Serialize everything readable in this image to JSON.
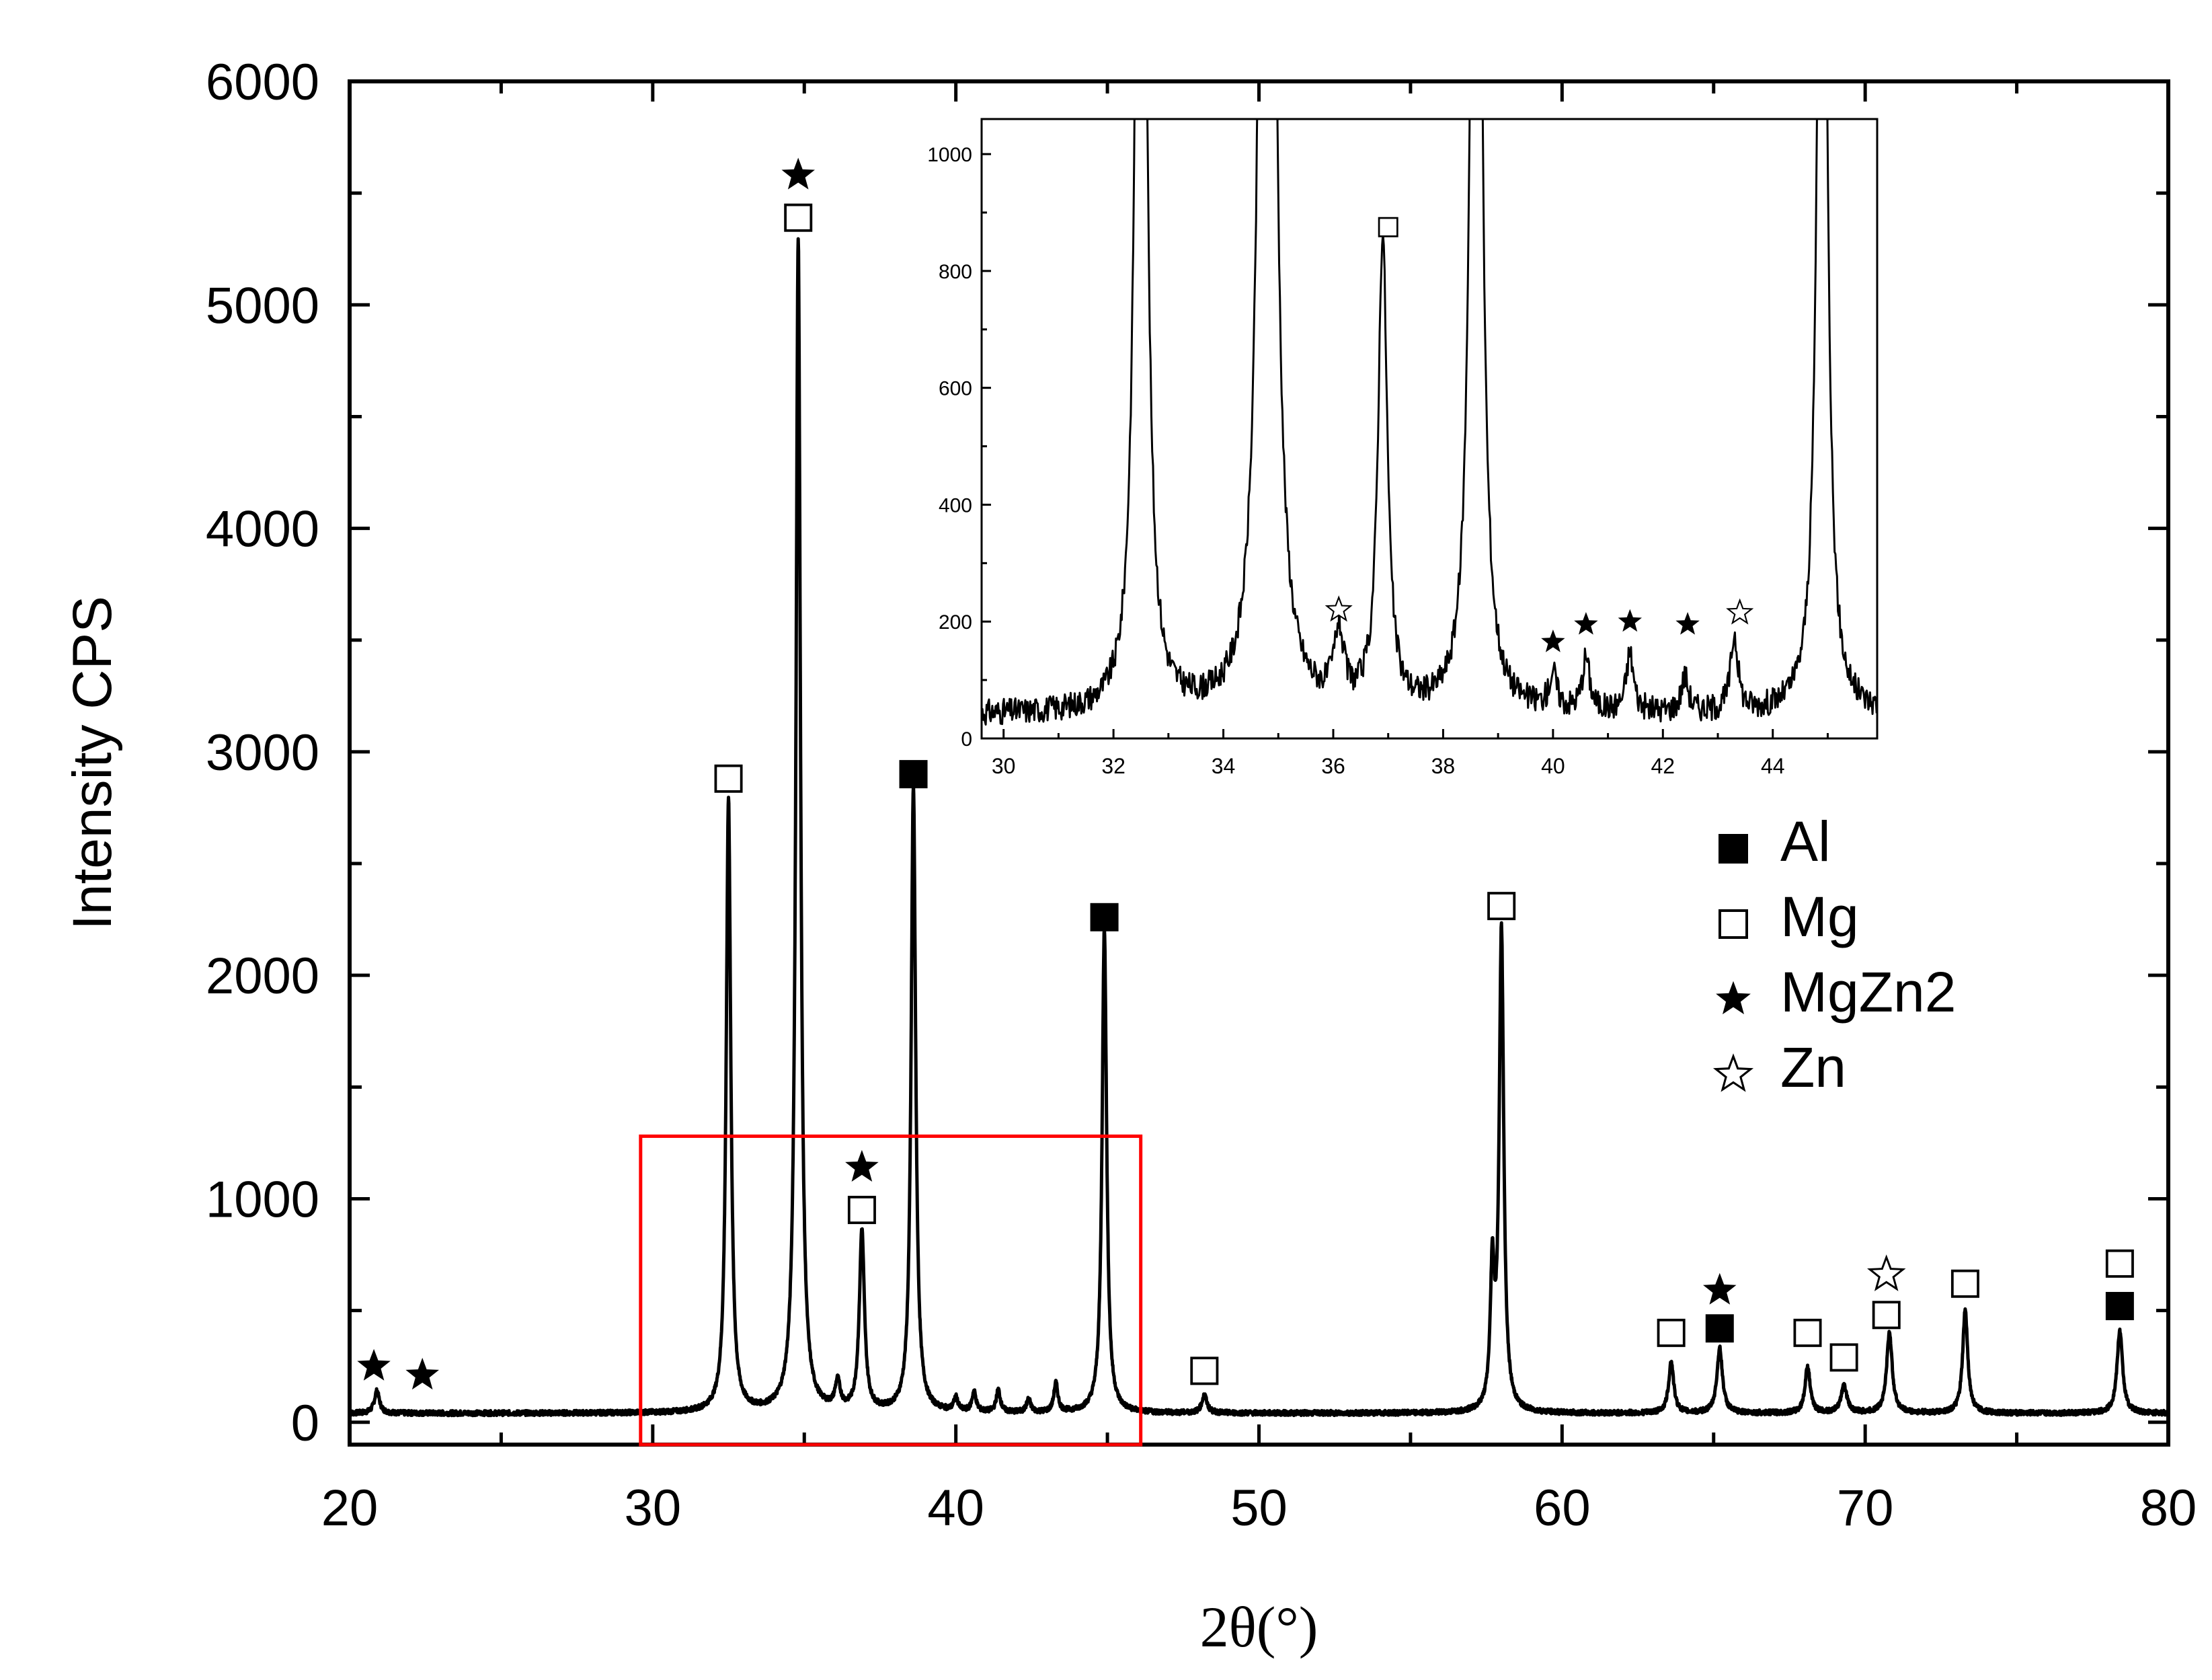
{
  "chart_data": {
    "type": "line",
    "title": "",
    "xlabel": "2θ(°)",
    "ylabel": "Intensity CPS",
    "xlim": [
      20,
      80
    ],
    "ylim": [
      -100,
      6000
    ],
    "xticks": [
      20,
      30,
      40,
      50,
      60,
      70,
      80
    ],
    "yticks": [
      0,
      1000,
      2000,
      3000,
      4000,
      5000,
      6000
    ],
    "baseline": 40,
    "peaks": [
      {
        "x": 20.9,
        "y": 100,
        "w": 0.1
      },
      {
        "x": 32.5,
        "y": 2750,
        "w": 0.09
      },
      {
        "x": 34.8,
        "y": 5250,
        "w": 0.09
      },
      {
        "x": 36.1,
        "y": 120,
        "w": 0.1
      },
      {
        "x": 36.9,
        "y": 810,
        "w": 0.1
      },
      {
        "x": 38.6,
        "y": 2800,
        "w": 0.09
      },
      {
        "x": 40.0,
        "y": 60,
        "w": 0.08
      },
      {
        "x": 40.6,
        "y": 90,
        "w": 0.08
      },
      {
        "x": 41.4,
        "y": 100,
        "w": 0.08
      },
      {
        "x": 42.4,
        "y": 60,
        "w": 0.08
      },
      {
        "x": 43.3,
        "y": 130,
        "w": 0.08
      },
      {
        "x": 44.9,
        "y": 2170,
        "w": 0.09
      },
      {
        "x": 48.2,
        "y": 80,
        "w": 0.1
      },
      {
        "x": 57.7,
        "y": 600,
        "w": 0.08
      },
      {
        "x": 58.0,
        "y": 2150,
        "w": 0.09
      },
      {
        "x": 63.6,
        "y": 230,
        "w": 0.1
      },
      {
        "x": 65.2,
        "y": 290,
        "w": 0.11
      },
      {
        "x": 68.1,
        "y": 210,
        "w": 0.1
      },
      {
        "x": 69.3,
        "y": 120,
        "w": 0.12
      },
      {
        "x": 70.8,
        "y": 360,
        "w": 0.11
      },
      {
        "x": 73.3,
        "y": 460,
        "w": 0.1
      },
      {
        "x": 78.4,
        "y": 370,
        "w": 0.11
      }
    ],
    "markers": [
      {
        "x": 20.8,
        "y": 250,
        "type": "MgZn2"
      },
      {
        "x": 22.4,
        "y": 210,
        "type": "MgZn2"
      },
      {
        "x": 32.5,
        "y": 2880,
        "type": "Mg"
      },
      {
        "x": 34.8,
        "y": 5390,
        "type": "Mg"
      },
      {
        "x": 34.8,
        "y": 5580,
        "type": "MgZn2"
      },
      {
        "x": 36.9,
        "y": 950,
        "type": "Mg"
      },
      {
        "x": 36.9,
        "y": 1140,
        "type": "MgZn2"
      },
      {
        "x": 38.6,
        "y": 2900,
        "type": "Al"
      },
      {
        "x": 44.9,
        "y": 2260,
        "type": "Al"
      },
      {
        "x": 48.2,
        "y": 230,
        "type": "Mg"
      },
      {
        "x": 58.0,
        "y": 2310,
        "type": "Mg"
      },
      {
        "x": 63.6,
        "y": 400,
        "type": "Mg"
      },
      {
        "x": 65.2,
        "y": 420,
        "type": "Al"
      },
      {
        "x": 65.2,
        "y": 590,
        "type": "MgZn2"
      },
      {
        "x": 68.1,
        "y": 400,
        "type": "Mg"
      },
      {
        "x": 69.3,
        "y": 290,
        "type": "Mg"
      },
      {
        "x": 70.7,
        "y": 480,
        "type": "Mg"
      },
      {
        "x": 70.7,
        "y": 660,
        "type": "Zn"
      },
      {
        "x": 73.3,
        "y": 620,
        "type": "Mg"
      },
      {
        "x": 78.4,
        "y": 520,
        "type": "Al"
      },
      {
        "x": 78.4,
        "y": 710,
        "type": "Mg"
      }
    ],
    "highlight_box": {
      "x": [
        29.6,
        46.1
      ],
      "y": [
        -100,
        1280
      ],
      "color": "#ff0000"
    },
    "inset": {
      "xlim": [
        29.6,
        45.9
      ],
      "ylim": [
        0,
        1060
      ],
      "xticks": [
        30,
        32,
        34,
        36,
        38,
        40,
        42,
        44
      ],
      "yticks": [
        0,
        200,
        400,
        600,
        800,
        1000
      ],
      "markers": [
        {
          "x": 37.0,
          "y": 875,
          "type": "Mg"
        },
        {
          "x": 36.1,
          "y": 220,
          "type": "Zn"
        },
        {
          "x": 40.0,
          "y": 165,
          "type": "MgZn2"
        },
        {
          "x": 40.6,
          "y": 195,
          "type": "MgZn2"
        },
        {
          "x": 41.4,
          "y": 200,
          "type": "MgZn2"
        },
        {
          "x": 42.45,
          "y": 195,
          "type": "MgZn2"
        },
        {
          "x": 43.4,
          "y": 215,
          "type": "Zn"
        }
      ]
    },
    "legend": {
      "placement": "right-middle",
      "entries": [
        {
          "label": "Al",
          "type": "Al"
        },
        {
          "label": "Mg",
          "type": "Mg"
        },
        {
          "label": "MgZn2",
          "type": "MgZn2"
        },
        {
          "label": "Zn",
          "type": "Zn"
        }
      ]
    }
  }
}
